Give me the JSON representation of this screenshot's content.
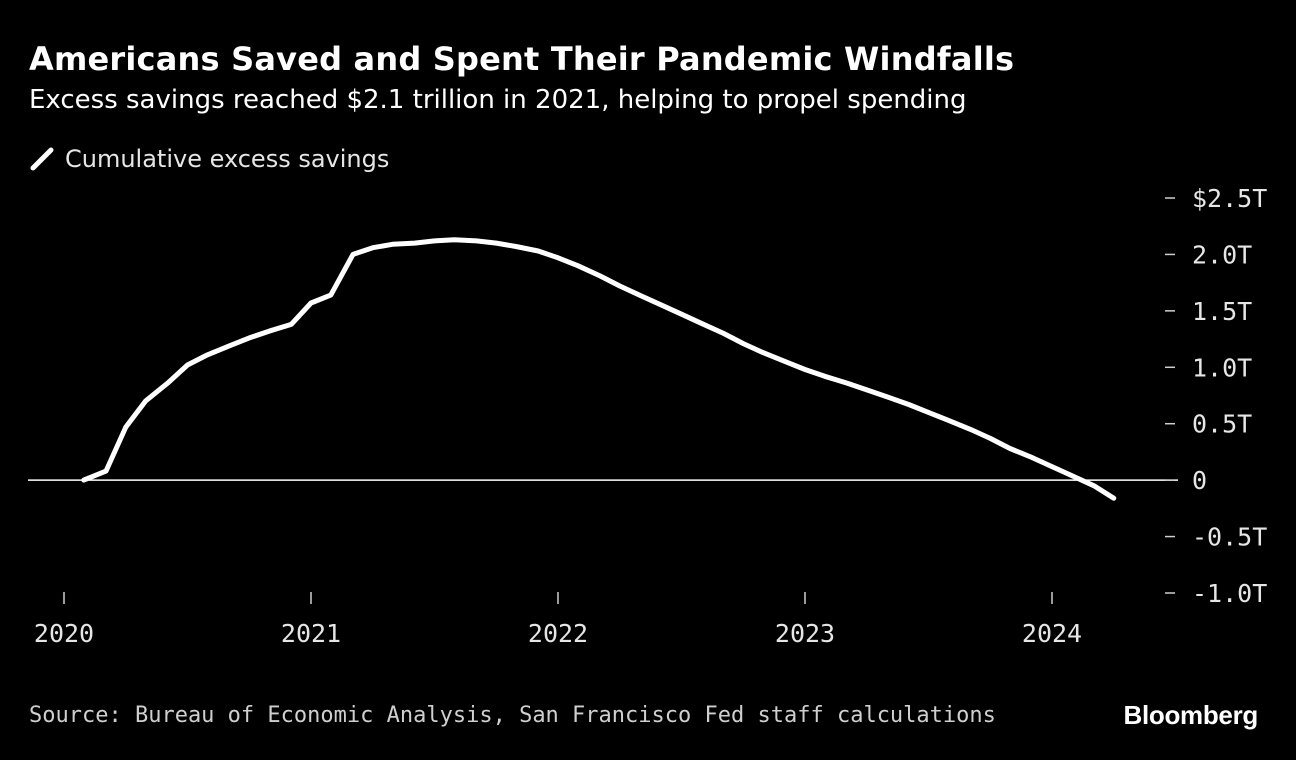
{
  "header": {
    "title": "Americans Saved and Spent Their Pandemic Windfalls",
    "subtitle": "Excess savings reached $2.1 trillion in 2021, helping to propel spending"
  },
  "legend": {
    "label": "Cumulative excess savings",
    "color": "#ffffff"
  },
  "footer": {
    "source": "Source: Bureau of Economic Analysis, San Francisco Fed staff calculations",
    "brand": "Bloomberg"
  },
  "chart_data": {
    "type": "line",
    "title": "Americans Saved and Spent Their Pandemic Windfalls",
    "subtitle": "Excess savings reached $2.1 trillion in 2021, helping to propel spending",
    "xlabel": "",
    "ylabel": "",
    "x_ticks": [
      2020,
      2021,
      2022,
      2023,
      2024
    ],
    "x_tick_labels": [
      "2020",
      "2021",
      "2022",
      "2023",
      "2024"
    ],
    "xlim": [
      2019.9,
      2024.5
    ],
    "ylim": [
      -1.0,
      2.5
    ],
    "y_ticks": [
      2.5,
      2.0,
      1.5,
      1.0,
      0.5,
      0,
      -0.5,
      -1.0
    ],
    "y_tick_labels": [
      "$2.5T",
      "2.0T",
      "1.5T",
      "1.0T",
      "0.5T",
      "0",
      "-0.5T",
      "-1.0T"
    ],
    "y_axis_side": "right",
    "zero_line": true,
    "grid": false,
    "legend_position": "top-left",
    "series": [
      {
        "name": "Cumulative excess savings",
        "color": "#ffffff",
        "x": [
          2020.08,
          2020.17,
          2020.25,
          2020.33,
          2020.42,
          2020.5,
          2020.58,
          2020.67,
          2020.75,
          2020.83,
          2020.92,
          2021.0,
          2021.08,
          2021.17,
          2021.25,
          2021.33,
          2021.42,
          2021.5,
          2021.58,
          2021.67,
          2021.75,
          2021.83,
          2021.92,
          2022.0,
          2022.08,
          2022.17,
          2022.25,
          2022.33,
          2022.42,
          2022.5,
          2022.58,
          2022.67,
          2022.75,
          2022.83,
          2022.92,
          2023.0,
          2023.08,
          2023.17,
          2023.25,
          2023.33,
          2023.42,
          2023.5,
          2023.58,
          2023.67,
          2023.75,
          2023.83,
          2023.92,
          2024.0,
          2024.08,
          2024.17,
          2024.25
        ],
        "values": [
          0.0,
          0.08,
          0.47,
          0.7,
          0.86,
          1.02,
          1.11,
          1.19,
          1.26,
          1.32,
          1.38,
          1.57,
          1.64,
          2.0,
          2.06,
          2.09,
          2.1,
          2.12,
          2.13,
          2.12,
          2.1,
          2.07,
          2.03,
          1.97,
          1.9,
          1.81,
          1.72,
          1.64,
          1.55,
          1.47,
          1.39,
          1.3,
          1.21,
          1.13,
          1.05,
          0.98,
          0.92,
          0.86,
          0.8,
          0.74,
          0.67,
          0.6,
          0.53,
          0.45,
          0.37,
          0.28,
          0.2,
          0.12,
          0.04,
          -0.05,
          -0.16
        ]
      }
    ]
  }
}
